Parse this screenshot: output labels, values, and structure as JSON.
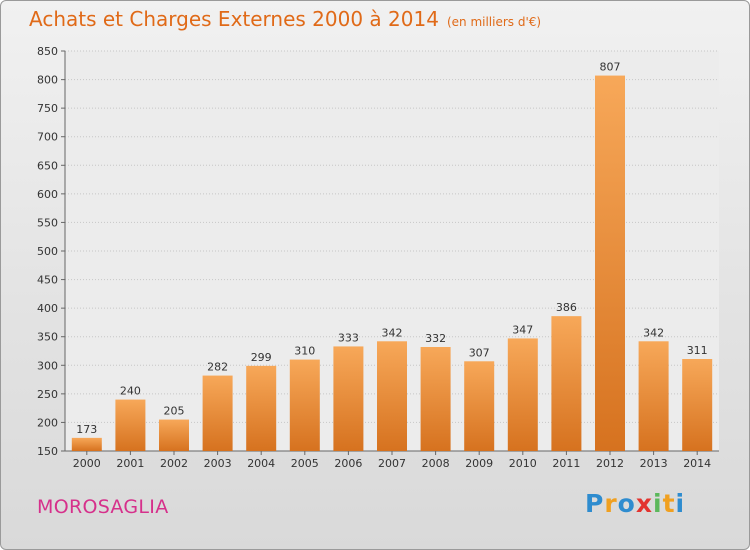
{
  "title": "Achats et Charges Externes 2000 à 2014",
  "subtitle": "(en milliers d'€)",
  "commune": "MOROSAGLIA",
  "logo": {
    "letters": [
      "P",
      "r",
      "o",
      "x",
      "i",
      "t",
      "i"
    ],
    "colors": [
      "#2e8ccf",
      "#f0a020",
      "#2e8ccf",
      "#e3342f",
      "#5cb85c",
      "#f0a020",
      "#2e8ccf"
    ]
  },
  "colors": {
    "bar_light": "#f7a859",
    "bar_dark": "#d6721f",
    "accent": "#e06a18",
    "commune": "#d6308b"
  },
  "chart_data": {
    "type": "bar",
    "categories": [
      "2000",
      "2001",
      "2002",
      "2003",
      "2004",
      "2005",
      "2006",
      "2007",
      "2008",
      "2009",
      "2010",
      "2011",
      "2012",
      "2013",
      "2014"
    ],
    "values": [
      173,
      240,
      205,
      282,
      299,
      310,
      333,
      342,
      332,
      307,
      347,
      386,
      807,
      342,
      311
    ],
    "ylim": [
      150,
      850
    ],
    "yticks": [
      150,
      200,
      250,
      300,
      350,
      400,
      450,
      500,
      550,
      600,
      650,
      700,
      750,
      800,
      850
    ],
    "grid": true
  }
}
